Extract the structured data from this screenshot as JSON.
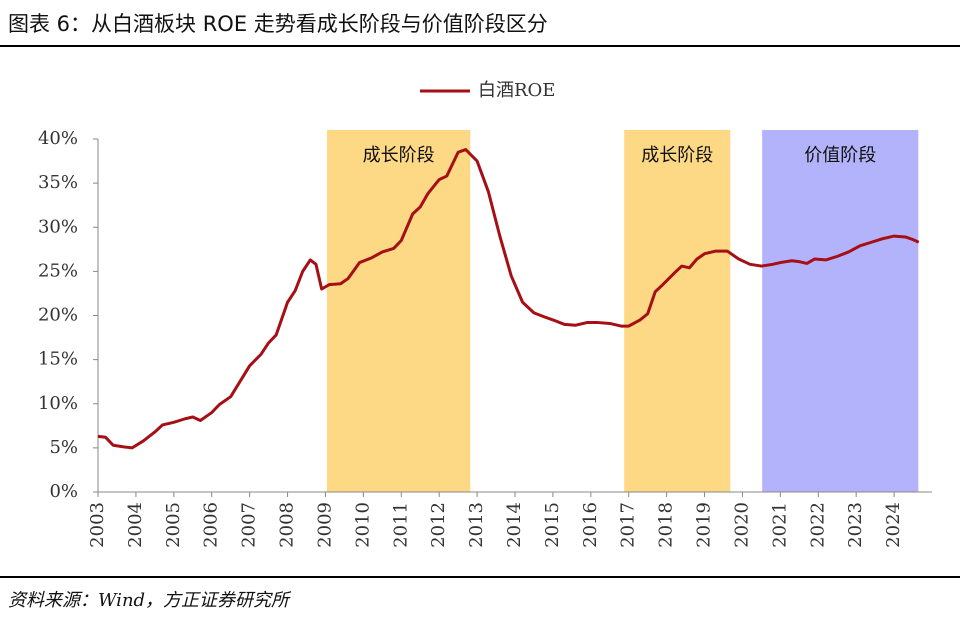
{
  "chart_data": {
    "type": "line",
    "title": "图表 6：从白酒板块 ROE 走势看成长阶段与价值阶段区分",
    "source": "资料来源：Wind，方正证券研究所",
    "x": [
      2003.0,
      2003.2,
      2003.4,
      2003.7,
      2003.9,
      2004.2,
      2004.5,
      2004.7,
      2005.0,
      2005.3,
      2005.5,
      2005.7,
      2006.0,
      2006.2,
      2006.5,
      2006.8,
      2007.0,
      2007.3,
      2007.5,
      2007.7,
      2008.0,
      2008.2,
      2008.4,
      2008.6,
      2008.75,
      2008.9,
      2009.1,
      2009.4,
      2009.6,
      2009.9,
      2010.2,
      2010.5,
      2010.8,
      2011.0,
      2011.3,
      2011.5,
      2011.7,
      2012.0,
      2012.2,
      2012.5,
      2012.7,
      2013.0,
      2013.3,
      2013.6,
      2013.9,
      2014.2,
      2014.5,
      2014.8,
      2015.0,
      2015.3,
      2015.6,
      2015.9,
      2016.2,
      2016.5,
      2016.8,
      2017.0,
      2017.3,
      2017.5,
      2017.7,
      2017.9,
      2018.2,
      2018.4,
      2018.6,
      2018.8,
      2019.0,
      2019.3,
      2019.6,
      2019.9,
      2020.2,
      2020.5,
      2020.8,
      2021.0,
      2021.3,
      2021.5,
      2021.7,
      2021.9,
      2022.2,
      2022.5,
      2022.8,
      2023.1,
      2023.4,
      2023.7,
      2024.0,
      2024.3,
      2024.5,
      2024.65
    ],
    "series": [
      {
        "name": "白酒ROE",
        "color": "#a50f15",
        "values": [
          6.3,
          6.2,
          5.3,
          5.1,
          5.0,
          5.8,
          6.8,
          7.6,
          7.9,
          8.3,
          8.5,
          8.1,
          9.0,
          9.9,
          10.8,
          12.9,
          14.3,
          15.6,
          16.9,
          17.8,
          21.5,
          22.8,
          25.0,
          26.3,
          25.8,
          23.0,
          23.5,
          23.6,
          24.2,
          26.0,
          26.5,
          27.2,
          27.6,
          28.5,
          31.5,
          32.3,
          33.8,
          35.4,
          35.8,
          38.5,
          38.8,
          37.5,
          34.0,
          29.0,
          24.5,
          21.5,
          20.3,
          19.8,
          19.5,
          19.0,
          18.9,
          19.2,
          19.2,
          19.1,
          18.8,
          18.8,
          19.5,
          20.2,
          22.7,
          23.5,
          24.8,
          25.6,
          25.4,
          26.4,
          27.0,
          27.3,
          27.3,
          26.4,
          25.8,
          25.6,
          25.8,
          26.0,
          26.2,
          26.1,
          25.9,
          26.4,
          26.3,
          26.7,
          27.2,
          27.9,
          28.3,
          28.7,
          29.0,
          28.9,
          28.6,
          28.3
        ]
      }
    ],
    "regions": [
      {
        "label": "成长阶段",
        "start": 2009.04,
        "end": 2012.82,
        "color": "#fdd985"
      },
      {
        "label": "成长阶段",
        "start": 2016.88,
        "end": 2019.68,
        "color": "#fdd985"
      },
      {
        "label": "价值阶段",
        "start": 2020.52,
        "end": 2024.64,
        "color": "#b3b3fb"
      }
    ],
    "xlim": [
      2003,
      2025
    ],
    "xticks": [
      2003,
      2004,
      2005,
      2006,
      2007,
      2008,
      2009,
      2010,
      2011,
      2012,
      2013,
      2014,
      2015,
      2016,
      2017,
      2018,
      2019,
      2020,
      2021,
      2022,
      2023,
      2024
    ],
    "ylim": [
      0,
      40
    ],
    "yticks": [
      {
        "value": 0,
        "label": "0%"
      },
      {
        "value": 5,
        "label": "5%"
      },
      {
        "value": 10,
        "label": "10%"
      },
      {
        "value": 15,
        "label": "15%"
      },
      {
        "value": 20,
        "label": "20%"
      },
      {
        "value": 25,
        "label": "25%"
      },
      {
        "value": 30,
        "label": "30%"
      },
      {
        "value": 35,
        "label": "35%"
      },
      {
        "value": 40,
        "label": "40%"
      }
    ],
    "legend": "top"
  }
}
